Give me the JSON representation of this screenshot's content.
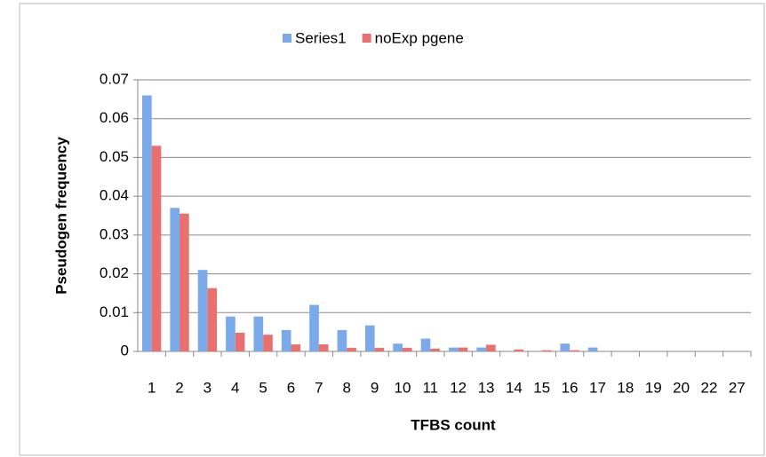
{
  "chart_data": {
    "type": "bar",
    "categories": [
      "1",
      "2",
      "3",
      "4",
      "5",
      "6",
      "7",
      "8",
      "9",
      "10",
      "11",
      "12",
      "13",
      "14",
      "15",
      "16",
      "17",
      "18",
      "19",
      "20",
      "22",
      "27"
    ],
    "series": [
      {
        "name": "Series1",
        "color": "#7aaaea",
        "values": [
          0.066,
          0.037,
          0.021,
          0.009,
          0.009,
          0.0055,
          0.012,
          0.0055,
          0.0067,
          0.002,
          0.0033,
          0.001,
          0.001,
          0,
          0,
          0.002,
          0.001,
          0,
          0,
          0,
          0,
          0
        ]
      },
      {
        "name": "noExp pgene",
        "color": "#e8716f",
        "values": [
          0.053,
          0.0355,
          0.0163,
          0.0048,
          0.0043,
          0.0018,
          0.0018,
          0.0009,
          0.0009,
          0.0009,
          0.0007,
          0.001,
          0.0017,
          0.0005,
          0.0003,
          0.0003,
          0,
          0,
          0,
          0,
          0,
          0
        ]
      }
    ],
    "xlabel": "TFBS count",
    "ylabel": "Pseudogen frequency",
    "ylim": [
      0,
      0.07
    ],
    "yticks": [
      0,
      0.01,
      0.02,
      0.03,
      0.04,
      0.05,
      0.06,
      0.07
    ],
    "grid": true,
    "legend": "top"
  }
}
